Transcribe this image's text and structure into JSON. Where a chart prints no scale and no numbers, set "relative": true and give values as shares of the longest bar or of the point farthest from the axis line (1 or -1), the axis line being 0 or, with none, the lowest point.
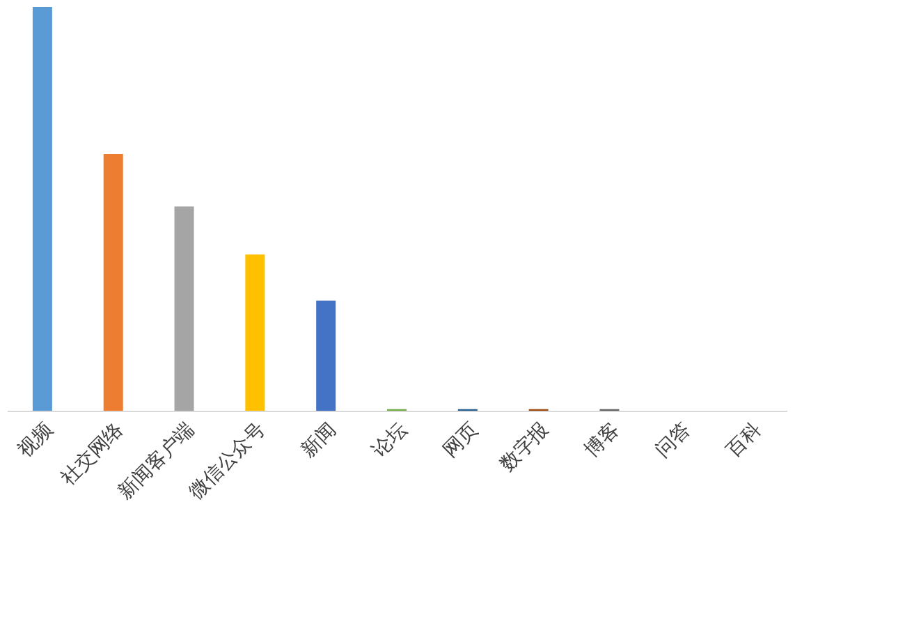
{
  "chart_data": {
    "type": "bar",
    "relative": true,
    "categories": [
      "视频",
      "社交网络",
      "新闻客户端",
      "微信公众号",
      "新闻",
      "论坛",
      "网页",
      "数字报",
      "博客",
      "问答",
      "百科"
    ],
    "values": [
      1,
      0.636,
      0.506,
      0.387,
      0.273,
      0.004,
      0.004,
      0.004,
      0.004,
      0,
      0
    ],
    "colors": [
      "#5b9bd5",
      "#ed7d31",
      "#a5a5a5",
      "#ffc000",
      "#4472c4",
      "#70ad47",
      "#255e91",
      "#9e480e",
      "#636363",
      "#997300",
      "#264478"
    ]
  }
}
